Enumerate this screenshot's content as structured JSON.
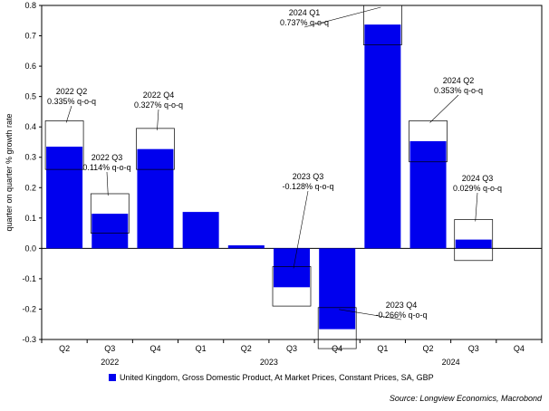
{
  "chart_data": {
    "type": "bar",
    "ylabel": "quarter on quarter % growth rate",
    "ylim": [
      -0.3,
      0.8
    ],
    "yticks": [
      "0.8",
      "0.7",
      "0.6",
      "0.5",
      "0.4",
      "0.3",
      "0.2",
      "0.1",
      "0.0",
      "-0.1",
      "-0.2",
      "-0.3"
    ],
    "ytick_values": [
      0.8,
      0.7,
      0.6,
      0.5,
      0.4,
      0.3,
      0.2,
      0.1,
      0.0,
      -0.1,
      -0.2,
      -0.3
    ],
    "quarters": [
      "Q2",
      "Q3",
      "Q4",
      "Q1",
      "Q2",
      "Q3",
      "Q4",
      "Q1",
      "Q2",
      "Q3",
      "Q4"
    ],
    "years": [
      {
        "label": "2022",
        "start": 0,
        "end": 2
      },
      {
        "label": "2023",
        "start": 3,
        "end": 6
      },
      {
        "label": "2024",
        "start": 7,
        "end": 10
      }
    ],
    "values": [
      0.335,
      0.114,
      0.327,
      0.12,
      0.01,
      -0.128,
      -0.266,
      0.737,
      0.353,
      0.029,
      null
    ],
    "series_name": "United Kingdom, Gross Domestic Product, At Market Prices, Constant Prices, SA, GBP",
    "bar_color": "#0000ee",
    "annotations": [
      {
        "index": 0,
        "line1": "2022 Q2",
        "line2": "0.335% q-o-q"
      },
      {
        "index": 1,
        "line1": "2022 Q3",
        "line2": "0.114% q-o-q"
      },
      {
        "index": 2,
        "line1": "2022 Q4",
        "line2": "0.327% q-o-q"
      },
      {
        "index": 5,
        "line1": "2023 Q3",
        "line2": "-0.128% q-o-q"
      },
      {
        "index": 6,
        "line1": "2023 Q4",
        "line2": "-0.266% q-o-q"
      },
      {
        "index": 7,
        "line1": "2024 Q1",
        "line2": "0.737% q-o-q"
      },
      {
        "index": 8,
        "line1": "2024 Q2",
        "line2": "0.353% q-o-q"
      },
      {
        "index": 9,
        "line1": "2024 Q3",
        "line2": "0.029% q-o-q"
      }
    ],
    "source": "Source: Longview Economics, Macrobond"
  }
}
